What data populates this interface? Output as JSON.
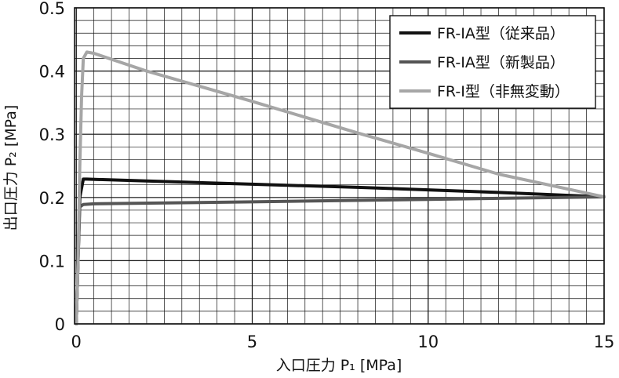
{
  "chart_data": {
    "type": "line",
    "xlabel": "入口圧力 P₁ [MPa]",
    "ylabel": "出口圧力 P₂ [MPa]",
    "xlim": [
      -0.05,
      15
    ],
    "ylim": [
      0,
      0.5
    ],
    "xticks": [
      0,
      5,
      10,
      15
    ],
    "xtick_labels": [
      "0",
      "5",
      "10",
      "15"
    ],
    "yticks": [
      0,
      0.1,
      0.2,
      0.3,
      0.4,
      0.5
    ],
    "ytick_labels": [
      "0",
      "0.1",
      "0.2",
      "0.3",
      "0.4",
      "0.5"
    ],
    "grid": true,
    "minor_grid": {
      "x_step": 0.5,
      "y_step": 0.02
    },
    "legend_position": "top-right",
    "series": [
      {
        "name": "FR-IA型（従来品）",
        "color": "#111111",
        "x": [
          0,
          0.05,
          0.1,
          0.2,
          0.3,
          2,
          5,
          8,
          10,
          12,
          15
        ],
        "y": [
          0,
          0.1,
          0.2,
          0.229,
          0.229,
          0.226,
          0.221,
          0.216,
          0.212,
          0.208,
          0.201
        ]
      },
      {
        "name": "FR-IA型（新製品）",
        "color": "#555555",
        "x": [
          0,
          0.05,
          0.1,
          0.2,
          0.5,
          5,
          10,
          15
        ],
        "y": [
          0,
          0.1,
          0.185,
          0.189,
          0.19,
          0.193,
          0.197,
          0.201
        ]
      },
      {
        "name": "FR-I型（非無変動）",
        "color": "#a6a6a6",
        "x": [
          0,
          0.05,
          0.1,
          0.15,
          0.2,
          0.3,
          0.5,
          2,
          5,
          8,
          10,
          12,
          15
        ],
        "y": [
          0,
          0.1,
          0.25,
          0.36,
          0.42,
          0.43,
          0.428,
          0.4,
          0.352,
          0.302,
          0.27,
          0.237,
          0.201
        ]
      }
    ]
  }
}
